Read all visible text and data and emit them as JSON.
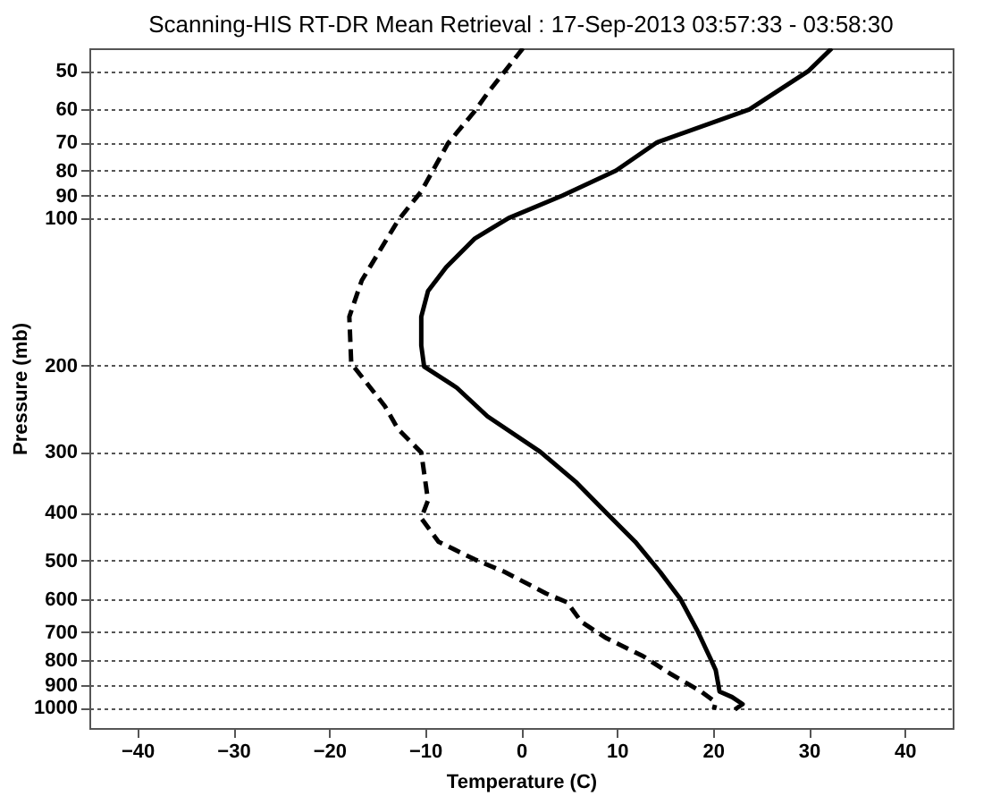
{
  "chart_data": {
    "type": "line",
    "title": "Scanning-HIS RT-DR Mean Retrieval : 17-Sep-2013 03:57:33 - 03:58:30",
    "xlabel": "Temperature (C)",
    "ylabel": "Pressure (mb)",
    "xlim": [
      -45,
      45
    ],
    "xticks": [
      -40,
      -30,
      -20,
      -10,
      0,
      10,
      20,
      30,
      40
    ],
    "ylim": [
      1100,
      45
    ],
    "yticks": [
      50,
      60,
      70,
      80,
      90,
      100,
      200,
      300,
      400,
      500,
      600,
      700,
      800,
      900,
      1000
    ],
    "log": "y",
    "grid": "y",
    "legend": false,
    "marker": "none",
    "series": [
      {
        "color": "#000000",
        "line_style": "solid",
        "x": [
          32.4,
          30,
          23.8,
          14.2,
          9.9,
          4.3,
          -1.3,
          -4.8,
          -7.8,
          -9.7,
          -10.4,
          -10.4,
          -10.1,
          -6.7,
          -3.5,
          2.0,
          5.8,
          8.9,
          11.9,
          14.5,
          16.6,
          18.4,
          19.7,
          20.3,
          20.7,
          22.0,
          23.1,
          22.3
        ],
        "values": [
          45,
          50,
          60,
          70,
          80,
          90,
          100,
          110,
          126,
          141,
          159,
          182,
          201,
          222,
          254,
          300,
          347,
          400,
          458,
          528,
          599,
          697,
          790,
          838,
          927,
          951,
          983,
          1008
        ]
      },
      {
        "color": "#000000",
        "line_style": "dashed",
        "x": [
          0.2,
          -3.5,
          -4.8,
          -7.6,
          -10.4,
          -12.8,
          -16.6,
          -17.9,
          -17.7,
          -14.2,
          -12.8,
          -10.4,
          -9.7,
          -10.4,
          -8.6,
          -4.8,
          -1.7,
          2.6,
          4.8,
          6.3,
          8.9,
          12.7,
          15.6,
          18.8,
          20.3,
          20.1
        ],
        "values": [
          45,
          55.6,
          60.4,
          70.3,
          88.2,
          101,
          134,
          159,
          198,
          242,
          270,
          301,
          377,
          410,
          458,
          498,
          528,
          584,
          609,
          668,
          721,
          784,
          853,
          927,
          975,
          1008
        ]
      }
    ]
  }
}
